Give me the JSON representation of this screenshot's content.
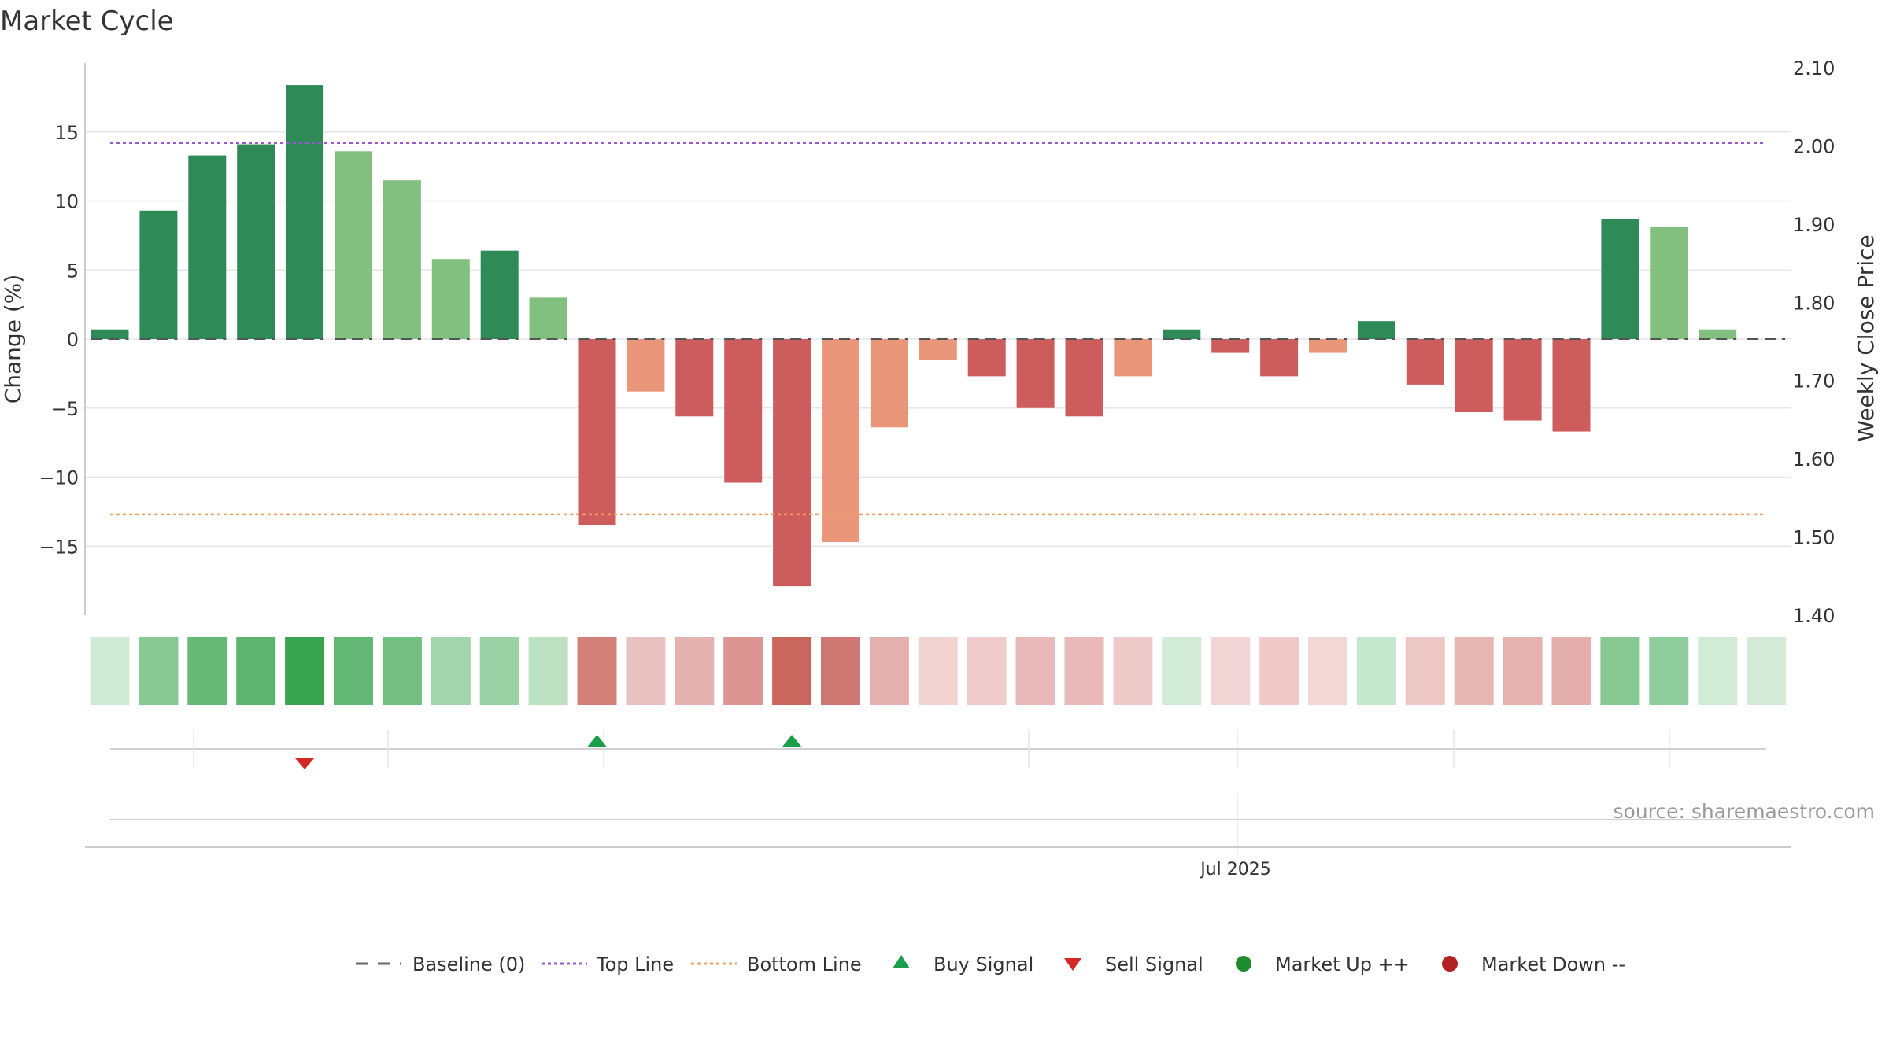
{
  "chart_data": {
    "type": "bar",
    "title": "Market Cycle",
    "ylabel": "Change (%)",
    "y2label": "Weekly Close Price",
    "ylim": [
      -20,
      20
    ],
    "y_ticks": [
      15,
      10,
      5,
      0,
      -5,
      -10,
      -15
    ],
    "y_tick_labels": [
      "15",
      "10",
      "5",
      "0",
      "−5",
      "−10",
      "−15"
    ],
    "y2lim": [
      1.4,
      2.1
    ],
    "y2_ticks": [
      2.1,
      2.0,
      1.9,
      1.8,
      1.7,
      1.6,
      1.5,
      1.4
    ],
    "y2_tick_labels": [
      "2.10",
      "2.00",
      "1.90",
      "1.80",
      "1.70",
      "1.60",
      "1.50",
      "1.40"
    ],
    "x_tick_label": "Jul 2025",
    "source": "source: sharemaestro.com",
    "top_line": 14.2,
    "bottom_line": -12.7,
    "values": [
      0.7,
      9.3,
      13.3,
      14.1,
      18.4,
      13.6,
      11.5,
      5.8,
      6.4,
      3.0,
      -13.5,
      -3.8,
      -5.6,
      -10.4,
      -17.9,
      -14.7,
      -6.4,
      -1.5,
      -2.7,
      -5.0,
      -5.6,
      -2.7,
      0.7,
      -1.0,
      -2.7,
      -1.0,
      1.3,
      -3.3,
      -5.3,
      -5.9,
      -6.7,
      8.7,
      8.1,
      0.7,
      0.0
    ],
    "bar_colors": [
      "#2e8b57",
      "#2e8b57",
      "#2e8b57",
      "#2e8b57",
      "#2e8b57",
      "#81c07e",
      "#81c07e",
      "#81c07e",
      "#2e8b57",
      "#81c07e",
      "#cd5c5c",
      "#e9967a",
      "#cd5c5c",
      "#cd5c5c",
      "#cd5c5c",
      "#e9967a",
      "#e9967a",
      "#e9967a",
      "#cd5c5c",
      "#cd5c5c",
      "#cd5c5c",
      "#e9967a",
      "#2e8b57",
      "#cd5c5c",
      "#cd5c5c",
      "#e9967a",
      "#2e8b57",
      "#cd5c5c",
      "#cd5c5c",
      "#cd5c5c",
      "#cd5c5c",
      "#2e8b57",
      "#81c07e",
      "#81c07e",
      "#81c07e"
    ],
    "heat_colors": [
      "#d0ead5",
      "#88c993",
      "#66b977",
      "#5db46f",
      "#38a451",
      "#63b775",
      "#72bf81",
      "#a3d5ac",
      "#9bd2a5",
      "#bbe0c2",
      "#d4807a",
      "#e8c2c0",
      "#e5b1af",
      "#db9592",
      "#c9665e",
      "#cf7873",
      "#e4b0ae",
      "#f2d3d2",
      "#efcccb",
      "#e8b9b8",
      "#e8b9b8",
      "#eecac9",
      "#d2ebd6",
      "#f1d6d5",
      "#efcac9",
      "#f1d7d6",
      "#c5e7cc",
      "#ecc7c6",
      "#e6b7b5",
      "#e5b2b0",
      "#e3aeac",
      "#88c993",
      "#8fcd9d",
      "#d2ebd6",
      "#d3ead8"
    ],
    "buy_signals": [
      10,
      14
    ],
    "sell_signals": [
      4
    ],
    "colors": {
      "up_strong": "#2e8b57",
      "up_light": "#81c07e",
      "down_strong": "#cd5c5c",
      "down_light": "#e9967a",
      "top_line": "#9b59d0",
      "bottom_line": "#f0a060",
      "buy": "#1a9e4a",
      "sell": "#d62728",
      "market_up": "#1e8b2e",
      "market_down": "#b22222"
    },
    "legend": {
      "baseline": "Baseline (0)",
      "top_line": "Top Line",
      "bottom_line": "Bottom Line",
      "buy": "Buy Signal",
      "sell": "Sell Signal",
      "market_up": "Market Up ++",
      "market_down": "Market Down --"
    }
  }
}
